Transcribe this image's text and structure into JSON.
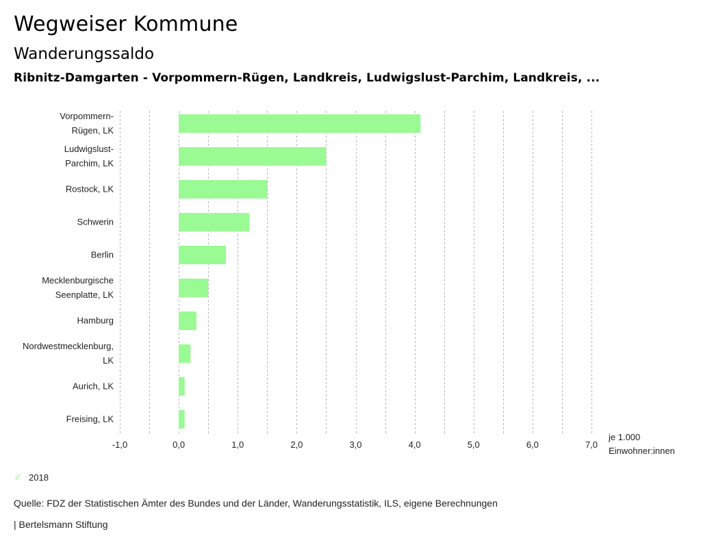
{
  "header": {
    "title": "Wegweiser Kommune",
    "subtitle": "Wanderungssaldo",
    "region": "Ribnitz-Damgarten - Vorpommern-Rügen, Landkreis, Ludwigslust-Parchim, Landkreis, ..."
  },
  "chart_data": {
    "type": "bar",
    "orientation": "horizontal",
    "title": "Wanderungssaldo",
    "categories": [
      [
        "Vorpommern-",
        "Rügen, LK"
      ],
      [
        "Ludwigslust-",
        "Parchim, LK"
      ],
      [
        "Rostock, LK"
      ],
      [
        "Schwerin"
      ],
      [
        "Berlin"
      ],
      [
        "Mecklenburgische",
        "Seenplatte, LK"
      ],
      [
        "Hamburg"
      ],
      [
        "Nordwestmecklenburg,",
        "LK"
      ],
      [
        "Aurich, LK"
      ],
      [
        "Freising, LK"
      ]
    ],
    "series": [
      {
        "name": "2018",
        "color": "#9afa94",
        "values": [
          4.1,
          2.5,
          1.5,
          1.2,
          0.8,
          0.5,
          0.3,
          0.2,
          0.1,
          0.1
        ]
      }
    ],
    "xlim": [
      -1.0,
      7.0
    ],
    "xticks": [
      -1,
      0,
      1,
      2,
      3,
      4,
      5,
      6,
      7
    ],
    "xtick_labels": [
      "-1,0",
      "0,0",
      "1,0",
      "2,0",
      "3,0",
      "4,0",
      "5,0",
      "6,0",
      "7,0"
    ],
    "grid_step": 0.5,
    "grid": true,
    "xlabel": [
      "je 1.000",
      "Einwohner:innen"
    ],
    "ylabel": "",
    "legend_position": "bottom-left"
  },
  "legend": {
    "items": [
      {
        "label": "2018",
        "color": "#9afa94",
        "icon": "check-icon"
      }
    ]
  },
  "footer": {
    "source": "Quelle: FDZ der Statistischen Ämter des Bundes und der Länder, Wanderungsstatistik, ILS, eigene Berechnungen",
    "credit": "| Bertelsmann Stiftung"
  }
}
